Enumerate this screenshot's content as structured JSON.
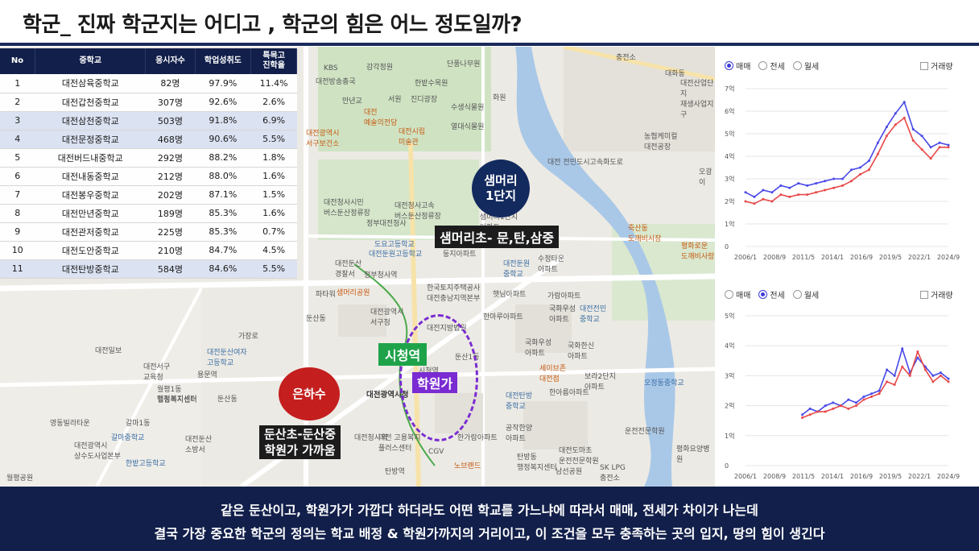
{
  "title": "학군_ 진짜 학군지는 어디고 , 학군의 힘은 어느 정도일까?",
  "table": {
    "headers": [
      "No",
      "중학교",
      "응시자수",
      "학업성취도",
      "특목고\n진학율"
    ],
    "rows": [
      {
        "no": "1",
        "name": "대전삼육중학교",
        "count": "82명",
        "rate": "97.9%",
        "special": "11.4%",
        "hl": false
      },
      {
        "no": "2",
        "name": "대전갑천중학교",
        "count": "307명",
        "rate": "92.6%",
        "special": "2.6%",
        "hl": false
      },
      {
        "no": "3",
        "name": "대전삼천중학교",
        "count": "503명",
        "rate": "91.8%",
        "special": "6.9%",
        "hl": true
      },
      {
        "no": "4",
        "name": "대전문정중학교",
        "count": "468명",
        "rate": "90.6%",
        "special": "5.5%",
        "hl": true
      },
      {
        "no": "5",
        "name": "대전버드내중학교",
        "count": "292명",
        "rate": "88.2%",
        "special": "1.8%",
        "hl": false
      },
      {
        "no": "6",
        "name": "대전내동중학교",
        "count": "212명",
        "rate": "88.0%",
        "special": "1.6%",
        "hl": false
      },
      {
        "no": "7",
        "name": "대전봉우중학교",
        "count": "202명",
        "rate": "87.1%",
        "special": "1.5%",
        "hl": false
      },
      {
        "no": "8",
        "name": "대전만년중학교",
        "count": "189명",
        "rate": "85.3%",
        "special": "1.6%",
        "hl": false
      },
      {
        "no": "9",
        "name": "대전관저중학교",
        "count": "225명",
        "rate": "85.3%",
        "special": "0.7%",
        "hl": false
      },
      {
        "no": "10",
        "name": "대전도안중학교",
        "count": "210명",
        "rate": "84.7%",
        "special": "4.5%",
        "hl": false
      },
      {
        "no": "11",
        "name": "대전탄방중학교",
        "count": "584명",
        "rate": "84.6%",
        "special": "5.5%",
        "hl": true
      }
    ]
  },
  "map": {
    "samh_circle": "샘머리\n1단지",
    "samh_tag": "샘머리초- 문,탄,삼중",
    "city_tag": "시청역",
    "hak_tag": "학원가",
    "eun_circle": "은하수",
    "dun_tag": "둔산초-둔산중\n학원가 가까움",
    "labels": [
      {
        "t": "KBS",
        "c": ""
      },
      {
        "t": "대전방송총국",
        "c": ""
      },
      {
        "t": "감각정원",
        "c": ""
      },
      {
        "t": "단풍나무원",
        "c": ""
      },
      {
        "t": "한밭수목원",
        "c": ""
      },
      {
        "t": "서원",
        "c": ""
      },
      {
        "t": "진디광장",
        "c": ""
      },
      {
        "t": "수생식물원",
        "c": ""
      },
      {
        "t": "만년교",
        "c": ""
      },
      {
        "t": "화원",
        "c": ""
      },
      {
        "t": "열대식물원",
        "c": ""
      },
      {
        "t": "대전\n예술의전당",
        "c": "orange"
      },
      {
        "t": "대전시립\n미술관",
        "c": "orange"
      },
      {
        "t": "대전광역시\n서구보건소",
        "c": "orange"
      },
      {
        "t": "충전소",
        "c": ""
      },
      {
        "t": "대화동",
        "c": ""
      },
      {
        "t": "대전산업단지\n재생사업지구",
        "c": ""
      },
      {
        "t": "농협케미컬\n대전공장",
        "c": ""
      },
      {
        "t": "대전 전민도시고속화도로",
        "c": ""
      },
      {
        "t": "오광이",
        "c": ""
      },
      {
        "t": "대전청사시민\n버스둔산정류장",
        "c": ""
      },
      {
        "t": "대전청사고속\n버스둔산정류장",
        "c": ""
      },
      {
        "t": "정부대전청사",
        "c": ""
      },
      {
        "t": "샘머리1단지\n아파트",
        "c": ""
      },
      {
        "t": "도요고등학교",
        "c": "blue"
      },
      {
        "t": "대전둔산\n경찰서",
        "c": ""
      },
      {
        "t": "대전둔원고등학교",
        "c": "blue"
      },
      {
        "t": "둥지아파트",
        "c": ""
      },
      {
        "t": "수정타운\n아파트",
        "c": ""
      },
      {
        "t": "정부청사역",
        "c": ""
      },
      {
        "t": "대전둔원\n중학교",
        "c": "blue"
      },
      {
        "t": "파타워",
        "c": ""
      },
      {
        "t": "한국토지주택공사\n대전충남지역본부",
        "c": ""
      },
      {
        "t": "햇님아파트",
        "c": ""
      },
      {
        "t": "가람아파트",
        "c": ""
      },
      {
        "t": "샘머리공원",
        "c": "orange"
      },
      {
        "t": "둔산동",
        "c": ""
      },
      {
        "t": "대전광역시\n서구청",
        "c": ""
      },
      {
        "t": "한마루아파트",
        "c": ""
      },
      {
        "t": "국화우성\n아파트",
        "c": ""
      },
      {
        "t": "대전전민\n중학교",
        "c": "blue"
      },
      {
        "t": "대전지방법원",
        "c": ""
      },
      {
        "t": "둔산1동",
        "c": ""
      },
      {
        "t": "국화우성\n아파트",
        "c": ""
      },
      {
        "t": "국화한신\n아파트",
        "c": ""
      },
      {
        "t": "대전광역시청",
        "c": "bold"
      },
      {
        "t": "대전탄방\n중학교",
        "c": "blue"
      },
      {
        "t": "보라2단지\n아파트",
        "c": ""
      },
      {
        "t": "세이브존\n대전점",
        "c": "orange"
      },
      {
        "t": "오정동중학교",
        "c": "blue"
      },
      {
        "t": "시청역",
        "c": ""
      },
      {
        "t": "대전둔산여자\n고등학교",
        "c": "blue"
      },
      {
        "t": "월평1동\n행정복지센터",
        "c": ""
      },
      {
        "t": "대전일보",
        "c": ""
      },
      {
        "t": "둔산동",
        "c": ""
      },
      {
        "t": "행정복지센터",
        "c": ""
      },
      {
        "t": "대전둔산\n소방서",
        "c": ""
      },
      {
        "t": "영동빌라타운",
        "c": ""
      },
      {
        "t": "갈마1동",
        "c": ""
      },
      {
        "t": "갈마중학교",
        "c": "blue"
      },
      {
        "t": "대전광역시\n상수도사업본부",
        "c": ""
      },
      {
        "t": "한밭고등학교",
        "c": "blue"
      },
      {
        "t": "대전청사역",
        "c": ""
      },
      {
        "t": "공작한양\n아파트",
        "c": ""
      },
      {
        "t": "한가람아파트",
        "c": ""
      },
      {
        "t": "대전 고용복지\n플러스센터",
        "c": ""
      },
      {
        "t": "탄방역",
        "c": ""
      },
      {
        "t": "CGV",
        "c": ""
      },
      {
        "t": "노브랜드",
        "c": "orange"
      },
      {
        "t": "탄방동\n행정복지센터",
        "c": ""
      },
      {
        "t": "남선공원",
        "c": ""
      },
      {
        "t": "SK LPG\n충전소",
        "c": ""
      },
      {
        "t": "평화요양병원",
        "c": ""
      },
      {
        "t": "월평공원",
        "c": ""
      },
      {
        "t": "대전서구\n교육청",
        "c": ""
      },
      {
        "t": "용문역",
        "c": ""
      },
      {
        "t": "한아름아파트",
        "c": ""
      },
      {
        "t": "가장로",
        "c": ""
      },
      {
        "t": "평화로운\n도깨비사랑",
        "c": "orange"
      },
      {
        "t": "죽산동\n도깨비시장",
        "c": "orange"
      },
      {
        "t": "운전전문학원",
        "c": ""
      },
      {
        "t": "대전도마초\n운전전문학원",
        "c": ""
      }
    ]
  },
  "chart_top": {
    "legend": {
      "opt1": "매매",
      "opt2": "전세",
      "opt3": "월세",
      "check": "거래량",
      "selected": 1
    },
    "chart_data": {
      "type": "line",
      "x_labels": [
        "2006/1",
        "2008/9",
        "2011/5",
        "2014/1",
        "2016/9",
        "2019/5",
        "2022/1",
        "2024/9"
      ],
      "y_labels": [
        "0",
        "1억",
        "2억",
        "3억",
        "4억",
        "5억",
        "6억",
        "7억"
      ],
      "ylim": [
        0,
        7
      ],
      "series": [
        {
          "color": "#4848e8",
          "values": [
            2.4,
            2.2,
            2.5,
            2.4,
            2.7,
            2.6,
            2.8,
            2.7,
            2.8,
            2.9,
            3.0,
            3.0,
            3.4,
            3.5,
            3.8,
            4.6,
            5.3,
            5.9,
            6.4,
            5.2,
            4.9,
            4.4,
            4.6,
            4.5
          ]
        },
        {
          "color": "#e84848",
          "values": [
            2.0,
            1.9,
            2.1,
            2.0,
            2.3,
            2.2,
            2.3,
            2.3,
            2.4,
            2.5,
            2.6,
            2.7,
            2.9,
            3.2,
            3.4,
            4.1,
            4.9,
            5.4,
            5.7,
            4.7,
            4.3,
            3.9,
            4.4,
            4.4
          ]
        }
      ]
    }
  },
  "chart_bottom": {
    "legend": {
      "opt1": "매매",
      "opt2": "전세",
      "opt3": "월세",
      "check": "거래량",
      "selected": 2
    },
    "chart_data": {
      "type": "line",
      "x_labels": [
        "2006/1",
        "2008/9",
        "2011/5",
        "2014/1",
        "2016/9",
        "2019/5",
        "2022/1",
        "2024/9"
      ],
      "y_labels": [
        "0",
        "1억",
        "2억",
        "3억",
        "4억",
        "5억"
      ],
      "ylim": [
        0,
        5
      ],
      "series": [
        {
          "color": "#4848e8",
          "values": [
            1.7,
            1.9,
            1.8,
            2.0,
            2.1,
            2.0,
            2.2,
            2.1,
            2.3,
            2.4,
            2.5,
            3.2,
            3.0,
            3.9,
            3.1,
            3.6,
            3.3,
            3.0,
            3.1,
            2.9
          ]
        },
        {
          "color": "#e84848",
          "values": [
            1.6,
            1.7,
            1.8,
            1.8,
            1.9,
            2.0,
            1.9,
            2.0,
            2.2,
            2.3,
            2.4,
            2.8,
            2.7,
            3.3,
            3.0,
            3.8,
            3.2,
            2.8,
            3.0,
            2.8
          ]
        }
      ]
    }
  },
  "footer": {
    "line1": "같은 둔산이고, 학원가가 가깝다 하더라도 어떤 학교를 가느냐에 따라서 매매, 전세가 차이가 나는데",
    "line2": "결국 가장 중요한 학군의 정의는 학교 배정 & 학원가까지의 거리이고, 이 조건을 모두 충족하는 곳의 입지, 땅의 힘이 생긴다"
  }
}
